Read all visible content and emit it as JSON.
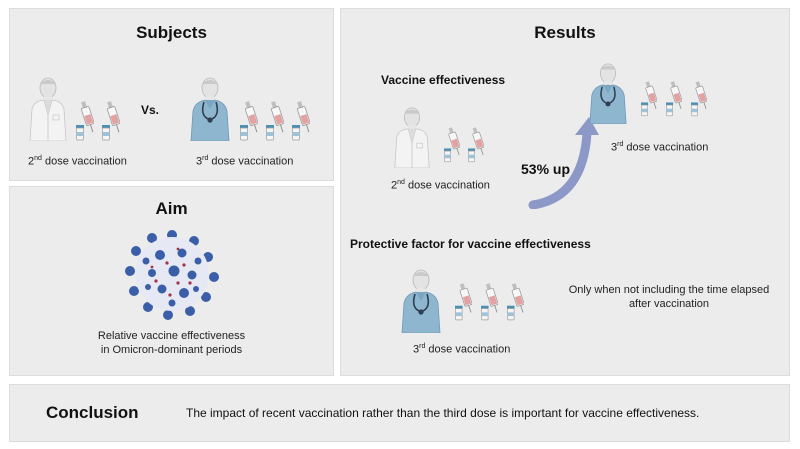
{
  "subjects": {
    "title": "Subjects",
    "vs_label": "Vs.",
    "left_caption": {
      "num": "2",
      "sup": "nd",
      "rest": " dose vaccination"
    },
    "right_caption": {
      "num": "3",
      "sup": "rd",
      "rest": " dose vaccination"
    }
  },
  "aim": {
    "title": "Aim",
    "text_line1": "Relative vaccine effectiveness",
    "text_line2": "in Omicron-dominant periods"
  },
  "results": {
    "title": "Results",
    "ve_heading": "Vaccine effectiveness",
    "second_caption": {
      "num": "2",
      "sup": "nd",
      "rest": " dose vaccination"
    },
    "third_caption": {
      "num": "3",
      "sup": "rd",
      "rest": " dose vaccination"
    },
    "increase_label": "53% up",
    "protective_heading": "Protective factor for vaccine effectiveness",
    "protective_caption": {
      "num": "3",
      "sup": "rd",
      "rest": " dose vaccination"
    },
    "protective_note_line1": "Only when not including the time elapsed",
    "protective_note_line2": "after vaccination"
  },
  "conclusion": {
    "label": "Conclusion",
    "text": "The impact of recent vaccination rather than the third dose is important for vaccine effectiveness."
  },
  "colors": {
    "panel_bg": "#ececec",
    "coat": "#f2f2f2",
    "scrubs": "#8fb6cf",
    "vial_cap": "#4f8fb4",
    "virus_blue": "#3a5fa8",
    "arrow": "#8c98c8"
  },
  "icons": [
    "doctor-in-coat-icon",
    "nurse-in-scrubs-icon",
    "syringe-icon",
    "virus-icon",
    "curved-arrow-icon"
  ]
}
